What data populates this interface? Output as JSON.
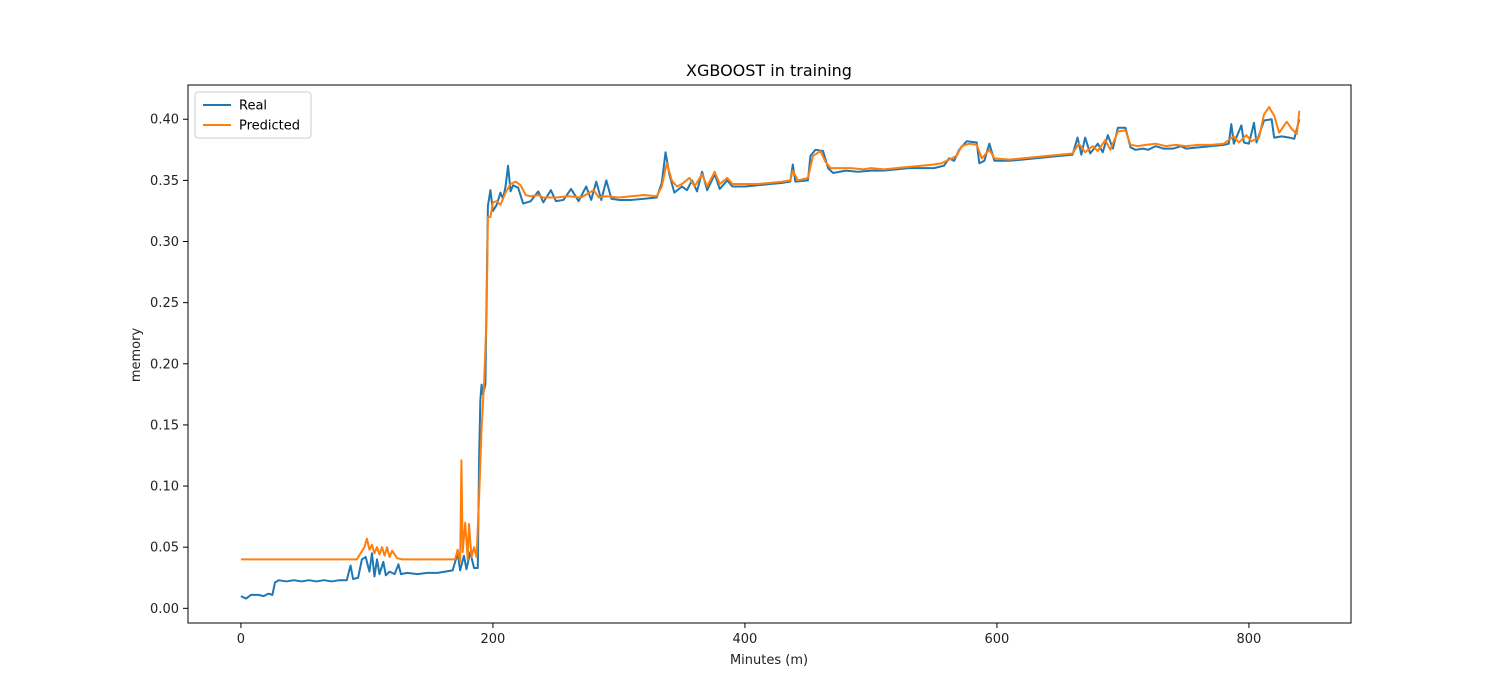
{
  "chart_data": {
    "type": "line",
    "title": "XGBOOST in training",
    "xlabel": "Minutes (m)",
    "ylabel": "memory",
    "xlim": [
      -42,
      881
    ],
    "ylim": [
      -0.012,
      0.428
    ],
    "xticks": [
      0,
      200,
      400,
      600,
      800
    ],
    "yticks": [
      0.0,
      0.05,
      0.1,
      0.15,
      0.2,
      0.25,
      0.3,
      0.35,
      0.4
    ],
    "xtick_labels": [
      "0",
      "200",
      "400",
      "600",
      "800"
    ],
    "ytick_labels": [
      "0.00",
      "0.05",
      "0.10",
      "0.15",
      "0.20",
      "0.25",
      "0.30",
      "0.35",
      "0.40"
    ],
    "grid": false,
    "legend_position": "top-left",
    "series": [
      {
        "name": "Real",
        "color": "#1f77b4",
        "points": [
          [
            0,
            0.01
          ],
          [
            4,
            0.008
          ],
          [
            8,
            0.011
          ],
          [
            14,
            0.011
          ],
          [
            18,
            0.01
          ],
          [
            22,
            0.012
          ],
          [
            25,
            0.011
          ],
          [
            27,
            0.021
          ],
          [
            30,
            0.023
          ],
          [
            36,
            0.022
          ],
          [
            42,
            0.023
          ],
          [
            48,
            0.022
          ],
          [
            54,
            0.023
          ],
          [
            60,
            0.022
          ],
          [
            66,
            0.023
          ],
          [
            72,
            0.022
          ],
          [
            78,
            0.023
          ],
          [
            84,
            0.023
          ],
          [
            87,
            0.035
          ],
          [
            89,
            0.024
          ],
          [
            93,
            0.025
          ],
          [
            96,
            0.04
          ],
          [
            99,
            0.042
          ],
          [
            102,
            0.03
          ],
          [
            104,
            0.045
          ],
          [
            106,
            0.026
          ],
          [
            108,
            0.04
          ],
          [
            110,
            0.028
          ],
          [
            113,
            0.038
          ],
          [
            115,
            0.027
          ],
          [
            118,
            0.03
          ],
          [
            122,
            0.028
          ],
          [
            125,
            0.036
          ],
          [
            127,
            0.028
          ],
          [
            132,
            0.029
          ],
          [
            140,
            0.028
          ],
          [
            148,
            0.029
          ],
          [
            156,
            0.029
          ],
          [
            162,
            0.03
          ],
          [
            168,
            0.031
          ],
          [
            172,
            0.045
          ],
          [
            174,
            0.031
          ],
          [
            177,
            0.043
          ],
          [
            179,
            0.032
          ],
          [
            182,
            0.046
          ],
          [
            185,
            0.033
          ],
          [
            188,
            0.033
          ],
          [
            189,
            0.12
          ],
          [
            190,
            0.17
          ],
          [
            191,
            0.183
          ],
          [
            192,
            0.175
          ],
          [
            194,
            0.183
          ],
          [
            196,
            0.329
          ],
          [
            198,
            0.342
          ],
          [
            200,
            0.325
          ],
          [
            203,
            0.33
          ],
          [
            206,
            0.34
          ],
          [
            208,
            0.335
          ],
          [
            210,
            0.345
          ],
          [
            212,
            0.362
          ],
          [
            214,
            0.341
          ],
          [
            216,
            0.346
          ],
          [
            220,
            0.344
          ],
          [
            224,
            0.331
          ],
          [
            230,
            0.333
          ],
          [
            236,
            0.341
          ],
          [
            240,
            0.332
          ],
          [
            246,
            0.342
          ],
          [
            250,
            0.333
          ],
          [
            256,
            0.334
          ],
          [
            262,
            0.343
          ],
          [
            268,
            0.333
          ],
          [
            274,
            0.345
          ],
          [
            278,
            0.334
          ],
          [
            282,
            0.349
          ],
          [
            286,
            0.334
          ],
          [
            290,
            0.35
          ],
          [
            294,
            0.335
          ],
          [
            300,
            0.334
          ],
          [
            310,
            0.334
          ],
          [
            320,
            0.335
          ],
          [
            330,
            0.336
          ],
          [
            334,
            0.348
          ],
          [
            337,
            0.373
          ],
          [
            340,
            0.355
          ],
          [
            344,
            0.34
          ],
          [
            350,
            0.345
          ],
          [
            354,
            0.342
          ],
          [
            358,
            0.35
          ],
          [
            362,
            0.341
          ],
          [
            366,
            0.357
          ],
          [
            370,
            0.342
          ],
          [
            376,
            0.355
          ],
          [
            380,
            0.343
          ],
          [
            386,
            0.35
          ],
          [
            390,
            0.345
          ],
          [
            400,
            0.345
          ],
          [
            410,
            0.346
          ],
          [
            420,
            0.347
          ],
          [
            430,
            0.348
          ],
          [
            436,
            0.349
          ],
          [
            438,
            0.363
          ],
          [
            440,
            0.349
          ],
          [
            450,
            0.35
          ],
          [
            452,
            0.37
          ],
          [
            456,
            0.375
          ],
          [
            462,
            0.374
          ],
          [
            466,
            0.36
          ],
          [
            470,
            0.356
          ],
          [
            480,
            0.358
          ],
          [
            490,
            0.357
          ],
          [
            500,
            0.358
          ],
          [
            510,
            0.358
          ],
          [
            520,
            0.359
          ],
          [
            530,
            0.36
          ],
          [
            540,
            0.36
          ],
          [
            550,
            0.36
          ],
          [
            558,
            0.362
          ],
          [
            562,
            0.368
          ],
          [
            566,
            0.366
          ],
          [
            570,
            0.375
          ],
          [
            576,
            0.382
          ],
          [
            584,
            0.381
          ],
          [
            586,
            0.364
          ],
          [
            590,
            0.366
          ],
          [
            594,
            0.38
          ],
          [
            598,
            0.366
          ],
          [
            610,
            0.366
          ],
          [
            620,
            0.367
          ],
          [
            630,
            0.368
          ],
          [
            640,
            0.369
          ],
          [
            650,
            0.37
          ],
          [
            660,
            0.371
          ],
          [
            664,
            0.385
          ],
          [
            667,
            0.371
          ],
          [
            670,
            0.385
          ],
          [
            674,
            0.372
          ],
          [
            680,
            0.38
          ],
          [
            684,
            0.373
          ],
          [
            688,
            0.387
          ],
          [
            692,
            0.376
          ],
          [
            696,
            0.393
          ],
          [
            702,
            0.393
          ],
          [
            706,
            0.377
          ],
          [
            710,
            0.375
          ],
          [
            716,
            0.376
          ],
          [
            720,
            0.375
          ],
          [
            726,
            0.378
          ],
          [
            732,
            0.376
          ],
          [
            740,
            0.376
          ],
          [
            746,
            0.378
          ],
          [
            750,
            0.376
          ],
          [
            760,
            0.377
          ],
          [
            770,
            0.378
          ],
          [
            780,
            0.379
          ],
          [
            784,
            0.38
          ],
          [
            786,
            0.396
          ],
          [
            788,
            0.38
          ],
          [
            794,
            0.395
          ],
          [
            796,
            0.381
          ],
          [
            800,
            0.38
          ],
          [
            804,
            0.397
          ],
          [
            806,
            0.381
          ],
          [
            812,
            0.399
          ],
          [
            818,
            0.4
          ],
          [
            820,
            0.385
          ],
          [
            826,
            0.386
          ],
          [
            832,
            0.385
          ],
          [
            836,
            0.384
          ],
          [
            840,
            0.4
          ]
        ]
      },
      {
        "name": "Predicted",
        "color": "#ff7f0e",
        "points": [
          [
            0,
            0.04
          ],
          [
            40,
            0.04
          ],
          [
            80,
            0.04
          ],
          [
            92,
            0.04
          ],
          [
            95,
            0.045
          ],
          [
            98,
            0.05
          ],
          [
            100,
            0.057
          ],
          [
            102,
            0.048
          ],
          [
            104,
            0.052
          ],
          [
            106,
            0.045
          ],
          [
            108,
            0.05
          ],
          [
            110,
            0.044
          ],
          [
            112,
            0.05
          ],
          [
            114,
            0.043
          ],
          [
            116,
            0.05
          ],
          [
            118,
            0.042
          ],
          [
            120,
            0.047
          ],
          [
            124,
            0.041
          ],
          [
            128,
            0.04
          ],
          [
            150,
            0.04
          ],
          [
            170,
            0.04
          ],
          [
            172,
            0.048
          ],
          [
            174,
            0.038
          ],
          [
            175,
            0.121
          ],
          [
            176,
            0.046
          ],
          [
            178,
            0.07
          ],
          [
            180,
            0.04
          ],
          [
            181,
            0.069
          ],
          [
            183,
            0.042
          ],
          [
            185,
            0.05
          ],
          [
            187,
            0.042
          ],
          [
            189,
            0.09
          ],
          [
            191,
            0.147
          ],
          [
            193,
            0.185
          ],
          [
            195,
            0.24
          ],
          [
            196,
            0.32
          ],
          [
            198,
            0.32
          ],
          [
            200,
            0.332
          ],
          [
            203,
            0.333
          ],
          [
            206,
            0.33
          ],
          [
            210,
            0.34
          ],
          [
            214,
            0.347
          ],
          [
            218,
            0.349
          ],
          [
            222,
            0.346
          ],
          [
            226,
            0.338
          ],
          [
            230,
            0.337
          ],
          [
            236,
            0.338
          ],
          [
            240,
            0.336
          ],
          [
            250,
            0.336
          ],
          [
            260,
            0.337
          ],
          [
            270,
            0.336
          ],
          [
            280,
            0.342
          ],
          [
            284,
            0.336
          ],
          [
            290,
            0.337
          ],
          [
            300,
            0.336
          ],
          [
            310,
            0.337
          ],
          [
            320,
            0.338
          ],
          [
            330,
            0.337
          ],
          [
            334,
            0.345
          ],
          [
            338,
            0.364
          ],
          [
            342,
            0.35
          ],
          [
            346,
            0.345
          ],
          [
            350,
            0.347
          ],
          [
            356,
            0.352
          ],
          [
            360,
            0.345
          ],
          [
            366,
            0.355
          ],
          [
            370,
            0.345
          ],
          [
            376,
            0.357
          ],
          [
            380,
            0.347
          ],
          [
            386,
            0.352
          ],
          [
            390,
            0.347
          ],
          [
            400,
            0.347
          ],
          [
            410,
            0.347
          ],
          [
            420,
            0.348
          ],
          [
            430,
            0.349
          ],
          [
            436,
            0.35
          ],
          [
            438,
            0.358
          ],
          [
            442,
            0.35
          ],
          [
            450,
            0.352
          ],
          [
            454,
            0.37
          ],
          [
            460,
            0.374
          ],
          [
            464,
            0.365
          ],
          [
            468,
            0.36
          ],
          [
            476,
            0.36
          ],
          [
            484,
            0.36
          ],
          [
            494,
            0.359
          ],
          [
            500,
            0.36
          ],
          [
            510,
            0.359
          ],
          [
            520,
            0.36
          ],
          [
            530,
            0.361
          ],
          [
            540,
            0.362
          ],
          [
            550,
            0.363
          ],
          [
            556,
            0.364
          ],
          [
            560,
            0.366
          ],
          [
            564,
            0.368
          ],
          [
            568,
            0.37
          ],
          [
            572,
            0.378
          ],
          [
            578,
            0.38
          ],
          [
            584,
            0.379
          ],
          [
            588,
            0.368
          ],
          [
            594,
            0.375
          ],
          [
            598,
            0.368
          ],
          [
            610,
            0.367
          ],
          [
            620,
            0.368
          ],
          [
            630,
            0.369
          ],
          [
            640,
            0.37
          ],
          [
            650,
            0.371
          ],
          [
            660,
            0.372
          ],
          [
            665,
            0.38
          ],
          [
            670,
            0.373
          ],
          [
            676,
            0.378
          ],
          [
            680,
            0.374
          ],
          [
            686,
            0.383
          ],
          [
            690,
            0.375
          ],
          [
            696,
            0.39
          ],
          [
            702,
            0.391
          ],
          [
            706,
            0.379
          ],
          [
            712,
            0.378
          ],
          [
            718,
            0.379
          ],
          [
            726,
            0.38
          ],
          [
            734,
            0.378
          ],
          [
            742,
            0.379
          ],
          [
            750,
            0.378
          ],
          [
            760,
            0.379
          ],
          [
            770,
            0.379
          ],
          [
            780,
            0.38
          ],
          [
            788,
            0.386
          ],
          [
            792,
            0.381
          ],
          [
            798,
            0.387
          ],
          [
            802,
            0.382
          ],
          [
            808,
            0.385
          ],
          [
            812,
            0.404
          ],
          [
            816,
            0.41
          ],
          [
            820,
            0.403
          ],
          [
            824,
            0.389
          ],
          [
            830,
            0.398
          ],
          [
            834,
            0.392
          ],
          [
            838,
            0.388
          ],
          [
            840,
            0.407
          ]
        ]
      }
    ]
  }
}
